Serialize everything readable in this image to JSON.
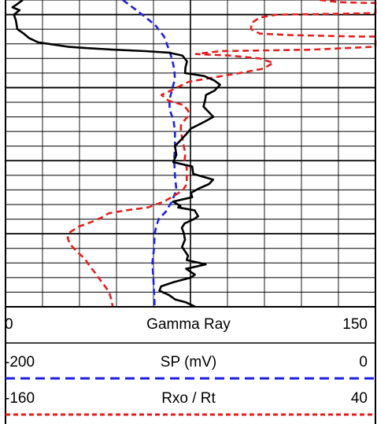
{
  "chart_data": {
    "type": "line",
    "title": "",
    "xlabel": "",
    "ylabel": "",
    "grid": true,
    "grid_major_every": 5,
    "grid_rows": 21,
    "grid_cols": 10,
    "y_note": "depth axis, top to bottom, in grid rows (unlabeled)",
    "series": [
      {
        "name": "Gamma Ray",
        "unit": "",
        "scale_min": 0,
        "scale_max": 150,
        "color": "#000000",
        "style": "solid",
        "points": [
          [
            7.0,
            0.0
          ],
          [
            4.6,
            0.3
          ],
          [
            2.8,
            0.5
          ],
          [
            5.7,
            0.7
          ],
          [
            3.4,
            1.0
          ],
          [
            4.2,
            1.4
          ],
          [
            4.8,
            2.0
          ],
          [
            7.4,
            2.3
          ],
          [
            9.5,
            2.6
          ],
          [
            13.3,
            2.9
          ],
          [
            17.3,
            3.0
          ],
          [
            25.2,
            3.2
          ],
          [
            33.8,
            3.3
          ],
          [
            43.5,
            3.4
          ],
          [
            56.8,
            3.5
          ],
          [
            66.2,
            3.6
          ],
          [
            71.7,
            3.8
          ],
          [
            73.6,
            4.2
          ],
          [
            73.0,
            4.6
          ],
          [
            72.8,
            5.0
          ],
          [
            80.5,
            5.2
          ],
          [
            84.5,
            5.5
          ],
          [
            87.0,
            5.8
          ],
          [
            84.8,
            6.2
          ],
          [
            81.3,
            6.5
          ],
          [
            81.0,
            6.8
          ],
          [
            80.3,
            7.3
          ],
          [
            82.6,
            7.7
          ],
          [
            84.3,
            8.0
          ],
          [
            79.9,
            8.4
          ],
          [
            75.2,
            8.8
          ],
          [
            73.2,
            9.2
          ],
          [
            71.0,
            9.6
          ],
          [
            68.7,
            10.0
          ],
          [
            69.3,
            10.6
          ],
          [
            68.0,
            11.1
          ],
          [
            75.7,
            11.4
          ],
          [
            76.1,
            11.9
          ],
          [
            84.2,
            12.3
          ],
          [
            82.5,
            12.6
          ],
          [
            78.4,
            12.9
          ],
          [
            75.2,
            13.2
          ],
          [
            75.7,
            13.5
          ],
          [
            67.9,
            13.8
          ],
          [
            70.9,
            14.1
          ],
          [
            70.0,
            14.2
          ],
          [
            76.7,
            14.4
          ],
          [
            78.1,
            14.8
          ],
          [
            76.4,
            15.0
          ],
          [
            72.6,
            15.3
          ],
          [
            71.5,
            15.6
          ],
          [
            72.2,
            15.9
          ],
          [
            72.8,
            16.4
          ],
          [
            71.6,
            16.9
          ],
          [
            74.0,
            17.5
          ],
          [
            73.5,
            17.8
          ],
          [
            81.2,
            18.1
          ],
          [
            73.2,
            18.4
          ],
          [
            76.8,
            18.8
          ],
          [
            75.2,
            19.0
          ],
          [
            68.5,
            19.3
          ],
          [
            63.1,
            19.6
          ],
          [
            62.4,
            19.9
          ],
          [
            66.3,
            20.2
          ],
          [
            68.8,
            20.5
          ],
          [
            73.2,
            20.7
          ],
          [
            77.0,
            21.0
          ]
        ]
      },
      {
        "name": "SP (mV)",
        "unit": "mV",
        "scale_min": -200,
        "scale_max": 0,
        "color": "#1f1fe6",
        "style": "dashed",
        "points": [
          [
            -136.6,
            0.0
          ],
          [
            -130.3,
            0.6
          ],
          [
            -124.0,
            1.2
          ],
          [
            -118.5,
            1.8
          ],
          [
            -114.3,
            2.5
          ],
          [
            -112.2,
            3.2
          ],
          [
            -110.1,
            4.0
          ],
          [
            -108.8,
            4.7
          ],
          [
            -108.4,
            5.4
          ],
          [
            -110.1,
            6.2
          ],
          [
            -111.3,
            6.8
          ],
          [
            -111.3,
            7.5
          ],
          [
            -109.2,
            8.2
          ],
          [
            -108.4,
            9.0
          ],
          [
            -108.4,
            10.0
          ],
          [
            -108.8,
            11.0
          ],
          [
            -108.4,
            12.0
          ],
          [
            -107.6,
            13.0
          ],
          [
            -110.1,
            13.8
          ],
          [
            -113.4,
            14.5
          ],
          [
            -117.2,
            15.0
          ],
          [
            -118.5,
            15.5
          ],
          [
            -119.3,
            16.0
          ],
          [
            -119.7,
            17.0
          ],
          [
            -120.6,
            18.0
          ],
          [
            -120.1,
            19.0
          ],
          [
            -119.7,
            20.0
          ],
          [
            -119.3,
            21.0
          ]
        ]
      },
      {
        "name": "Rxo / Rt",
        "unit": "",
        "scale_min": -160,
        "scale_max": 40,
        "color": "#e61e1e",
        "style": "dashed",
        "points": [
          [
            9.9,
            0.0
          ],
          [
            20.8,
            0.15
          ],
          [
            35.0,
            0.2
          ],
          [
            40.0,
            0.2
          ],
          [
            40.0,
            0.9
          ],
          [
            18.7,
            0.95
          ],
          [
            -13.3,
            1.0
          ],
          [
            -22.6,
            1.2
          ],
          [
            -27.2,
            1.6
          ],
          [
            -27.2,
            2.0
          ],
          [
            -22.6,
            2.3
          ],
          [
            -6.6,
            2.4
          ],
          [
            30.0,
            2.5
          ],
          [
            40.0,
            2.5
          ],
          [
            40.0,
            3.2
          ],
          [
            6.0,
            3.4
          ],
          [
            -44.0,
            3.5
          ],
          [
            -57.0,
            3.7
          ],
          [
            -38.8,
            3.8
          ],
          [
            -22.6,
            4.0
          ],
          [
            -15.2,
            4.3
          ],
          [
            -20.7,
            4.7
          ],
          [
            -33.4,
            5.0
          ],
          [
            -47.3,
            5.3
          ],
          [
            -61.0,
            5.6
          ],
          [
            -69.0,
            6.1
          ],
          [
            -75.7,
            6.5
          ],
          [
            -71.7,
            6.9
          ],
          [
            -63.6,
            7.2
          ],
          [
            -61.2,
            7.6
          ],
          [
            -61.6,
            8.0
          ],
          [
            -63.6,
            8.3
          ],
          [
            -65.2,
            8.6
          ],
          [
            -65.2,
            9.0
          ],
          [
            -64.4,
            9.5
          ],
          [
            -63.6,
            10.0
          ],
          [
            -62.8,
            10.5
          ],
          [
            -63.2,
            11.0
          ],
          [
            -62.0,
            11.5
          ],
          [
            -62.0,
            12.0
          ],
          [
            -62.0,
            12.6
          ],
          [
            -64.0,
            13.0
          ],
          [
            -68.8,
            13.4
          ],
          [
            -74.4,
            13.8
          ],
          [
            -83.0,
            14.2
          ],
          [
            -94.9,
            14.4
          ],
          [
            -104.2,
            14.6
          ],
          [
            -108.2,
            14.9
          ],
          [
            -113.6,
            15.2
          ],
          [
            -120.3,
            15.5
          ],
          [
            -125.2,
            15.9
          ],
          [
            -126.4,
            16.3
          ],
          [
            -125.2,
            16.7
          ],
          [
            -121.6,
            17.2
          ],
          [
            -117.2,
            17.7
          ],
          [
            -114.6,
            18.2
          ],
          [
            -111.4,
            18.7
          ],
          [
            -108.6,
            19.2
          ],
          [
            -106.2,
            19.6
          ],
          [
            -104.0,
            20.0
          ],
          [
            -103.0,
            20.4
          ],
          [
            -102.0,
            21.0
          ]
        ]
      }
    ]
  }
}
